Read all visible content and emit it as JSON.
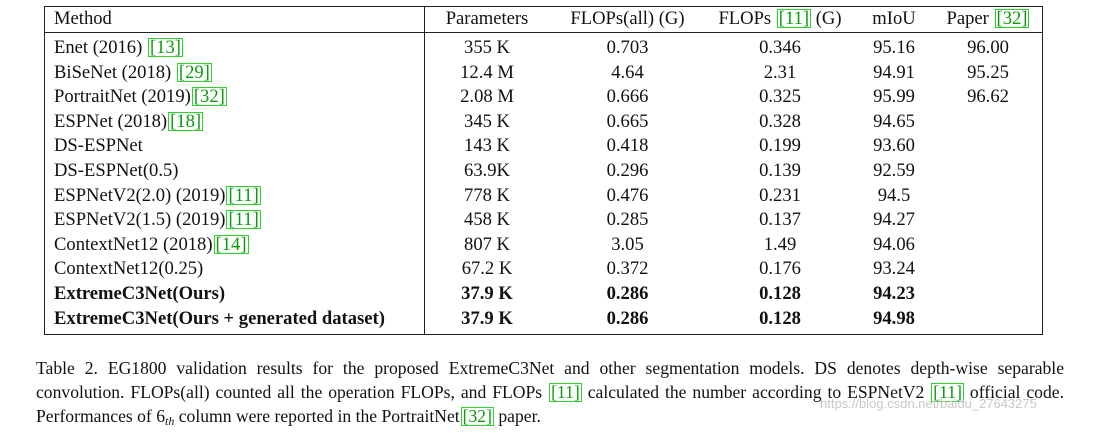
{
  "table": {
    "headers": {
      "method": "Method",
      "parameters": "Parameters",
      "flops_all": "FLOPs(all) (G)",
      "flops_pre": "FLOPs ",
      "flops_cite": "[11]",
      "flops_post": " (G)",
      "miou": "mIoU",
      "paper_pre": "Paper ",
      "paper_cite": "[32]"
    },
    "rows": [
      {
        "method": "Enet (2016) ",
        "cite": "[13]",
        "params": "355 K",
        "flops_all": "0.703",
        "flops": "0.346",
        "miou": "95.16",
        "paper": "96.00"
      },
      {
        "method": "BiSeNet (2018) ",
        "cite": "[29]",
        "params": "12.4 M",
        "flops_all": "4.64",
        "flops": "2.31",
        "miou": "94.91",
        "paper": "95.25"
      },
      {
        "method": "PortraitNet (2019)",
        "cite": "[32]",
        "params": "2.08 M",
        "flops_all": "0.666",
        "flops": "0.325",
        "miou": "95.99",
        "paper": "96.62"
      },
      {
        "method": "ESPNet (2018)",
        "cite": "[18]",
        "params": "345 K",
        "flops_all": "0.665",
        "flops": "0.328",
        "miou": "94.65",
        "paper": ""
      },
      {
        "method": "DS-ESPNet",
        "cite": "",
        "params": "143 K",
        "flops_all": "0.418",
        "flops": "0.199",
        "miou": "93.60",
        "paper": ""
      },
      {
        "method": "DS-ESPNet(0.5)",
        "cite": "",
        "params": "63.9K",
        "flops_all": "0.296",
        "flops": "0.139",
        "miou": "92.59",
        "paper": ""
      },
      {
        "method": "ESPNetV2(2.0) (2019)",
        "cite": "[11]",
        "params": "778 K",
        "flops_all": "0.476",
        "flops": "0.231",
        "miou": "94.5",
        "paper": ""
      },
      {
        "method": "ESPNetV2(1.5) (2019)",
        "cite": "[11]",
        "params": "458 K",
        "flops_all": "0.285",
        "flops": "0.137",
        "miou": "94.27",
        "paper": ""
      },
      {
        "method": "ContextNet12 (2018)",
        "cite": "[14]",
        "params": "807 K",
        "flops_all": "3.05",
        "flops": "1.49",
        "miou": "94.06",
        "paper": ""
      },
      {
        "method": "ContextNet12(0.25)",
        "cite": "",
        "params": "67.2 K",
        "flops_all": "0.372",
        "flops": "0.176",
        "miou": "93.24",
        "paper": ""
      },
      {
        "method": "ExtremeC3Net(Ours)",
        "cite": "",
        "params": "37.9 K",
        "flops_all": "0.286",
        "flops": "0.128",
        "miou": "94.23",
        "paper": ""
      },
      {
        "method": "ExtremeC3Net(Ours + generated dataset)",
        "cite": "",
        "params": "37.9 K",
        "flops_all": "0.286",
        "flops": "0.128",
        "miou": "94.98",
        "paper": ""
      }
    ]
  },
  "caption": {
    "s1": "Table 2. EG1800 validation results for the proposed ExtremeC3Net and other segmentation models. DS denotes depth-wise separable convolution. FLOPs(all) counted all the operation FLOPs, and FLOPs ",
    "cite1": "[11]",
    "s2": " calculated the number according to ESPNetV2 ",
    "cite2": "[11]",
    "s3": " official code. Performances of ",
    "math_base": "6",
    "math_sub": "th",
    "s4": " column were reported in the PortraitNet",
    "cite3": "[32]",
    "s5": " paper."
  },
  "watermark": "https://blog.csdn.net/baidu_27643275"
}
